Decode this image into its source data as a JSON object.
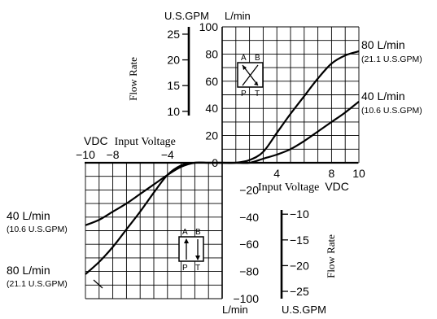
{
  "chart_data": {
    "type": "line",
    "title": "",
    "axes": {
      "x": {
        "label_left": "VDC",
        "label_left_suffix": "Input Voltage",
        "label_right": "Input Voltage",
        "label_right_suffix": "VDC",
        "range": [
          -10,
          10
        ],
        "ticks_positive": [
          "4",
          "8",
          "10"
        ],
        "ticks_negative": [
          "−10",
          "−8",
          "−4"
        ]
      },
      "y": {
        "unit_left_top": "U.S.GPM",
        "unit_right_top": "L/min",
        "unit_left_bottom": "L/min",
        "unit_right_bottom": "U.S.GPM",
        "range": [
          -100,
          100
        ],
        "ticks_lmin_positive": [
          "100",
          "80",
          "60",
          "40",
          "20",
          "0"
        ],
        "ticks_lmin_negative": [
          "−20",
          "−40",
          "−60",
          "−80",
          "−100"
        ],
        "ticks_gpm_positive": [
          "25",
          "20",
          "15",
          "10"
        ],
        "ticks_gpm_negative": [
          "−10",
          "−15",
          "−20",
          "−25"
        ],
        "flow_label": "Flow Rate"
      }
    },
    "grid": true,
    "series": [
      {
        "name": "80 L/min",
        "name_sub": "(21.1 U.S.GPM)",
        "x": [
          -10,
          -9,
          -8,
          -7,
          -6,
          -5,
          -4,
          -3,
          -2,
          -1,
          0,
          1,
          2,
          3,
          4,
          5,
          6,
          7,
          8,
          9,
          10
        ],
        "y": [
          -82,
          -73,
          -62,
          -49,
          -36,
          -22,
          -9,
          -2,
          0,
          0,
          0,
          0,
          2,
          8,
          22,
          36,
          49,
          62,
          73,
          79,
          82
        ]
      },
      {
        "name": "40 L/min",
        "name_sub": "(10.6 U.S.GPM)",
        "x": [
          -10,
          -9,
          -8,
          -7,
          -6,
          -5,
          -4,
          -3,
          -2,
          -1,
          0,
          1,
          2,
          3,
          4,
          5,
          6,
          7,
          8,
          9,
          10
        ],
        "y": [
          -46,
          -42,
          -36,
          -30,
          -23,
          -16,
          -9,
          -3,
          0,
          0,
          0,
          0,
          0,
          3,
          6,
          10,
          16,
          23,
          30,
          37,
          45
        ]
      }
    ],
    "valve_symbols": {
      "upper": {
        "top_left": "A",
        "top_right": "B",
        "bottom_left": "P",
        "bottom_right": "T"
      },
      "lower": {
        "top_left": "A",
        "top_right": "B",
        "bottom_left": "P",
        "bottom_right": "T"
      }
    }
  }
}
